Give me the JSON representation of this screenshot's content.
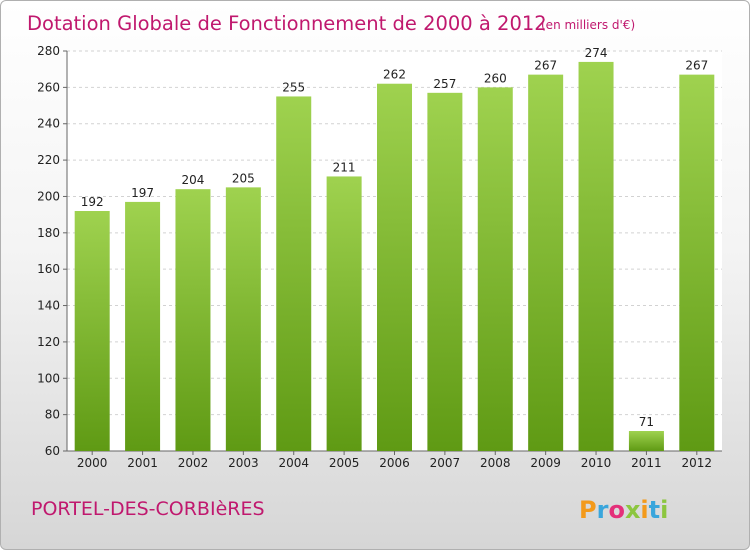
{
  "chart_data": {
    "type": "bar",
    "title": "Dotation Globale de Fonctionnement de 2000 à 2012",
    "subtitle": "(en milliers d'€)",
    "categories": [
      "2000",
      "2001",
      "2002",
      "2003",
      "2004",
      "2005",
      "2006",
      "2007",
      "2008",
      "2009",
      "2010",
      "2011",
      "2012"
    ],
    "values": [
      192,
      197,
      204,
      205,
      255,
      211,
      262,
      257,
      260,
      267,
      274,
      71,
      267
    ],
    "ylim": [
      60,
      280
    ],
    "yticks": [
      60,
      80,
      100,
      120,
      140,
      160,
      180,
      200,
      220,
      240,
      260,
      280
    ],
    "grid": true,
    "bar_color": "#7bb62c"
  },
  "footer": {
    "city": "PORTEL-DES-CORBIèRES",
    "logo": "Proxiti"
  },
  "logo_colors": [
    "#f39a1b",
    "#3aa6dc",
    "#e4307a",
    "#8cc63f",
    "#f39a1b",
    "#3aa6dc",
    "#8cc63f"
  ]
}
